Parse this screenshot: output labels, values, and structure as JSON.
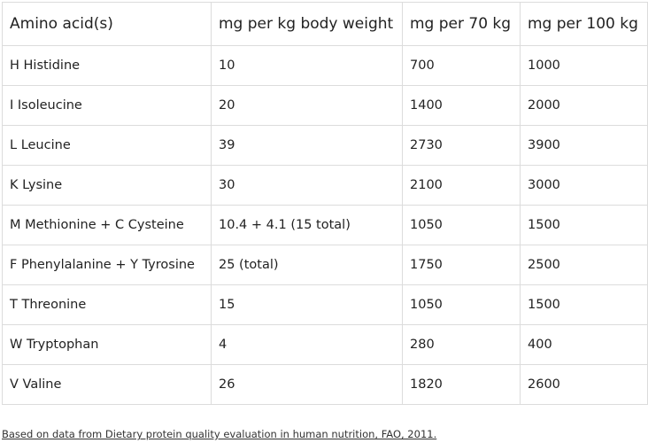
{
  "table": {
    "headers": [
      "Amino acid(s)",
      "mg per kg body weight",
      "mg per 70 kg",
      "mg per 100 kg"
    ],
    "rows": [
      [
        "H Histidine",
        "10",
        "700",
        "1000"
      ],
      [
        "I Isoleucine",
        "20",
        "1400",
        "2000"
      ],
      [
        "L Leucine",
        "39",
        "2730",
        "3900"
      ],
      [
        "K Lysine",
        "30",
        "2100",
        "3000"
      ],
      [
        "M Methionine + C Cysteine",
        "10.4 + 4.1 (15 total)",
        "1050",
        "1500"
      ],
      [
        "F Phenylalanine + Y Tyrosine",
        "25 (total)",
        "1750",
        "2500"
      ],
      [
        "T Threonine",
        "15",
        "1050",
        "1500"
      ],
      [
        "W Tryptophan",
        "4",
        "280",
        "400"
      ],
      [
        "V Valine",
        "26",
        "1820",
        "2600"
      ]
    ]
  },
  "source_link": "Based on data from Dietary protein quality evaluation in human nutrition, FAO, 2011."
}
